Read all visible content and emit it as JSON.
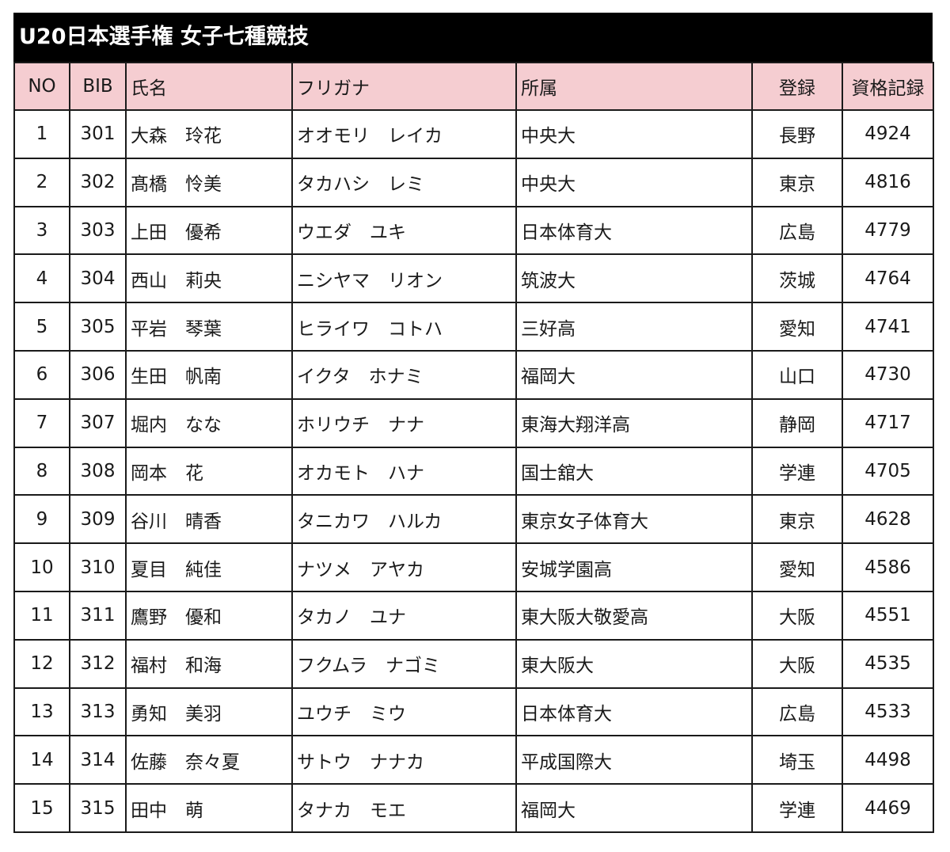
{
  "title": "U20日本選手権 女子七種競技",
  "columns": {
    "no": "NO",
    "bib": "BIB",
    "name": "氏名",
    "kana": "フリガナ",
    "affiliation": "所属",
    "registration": "登録",
    "record": "資格記録"
  },
  "rows": [
    {
      "no": "1",
      "bib": "301",
      "name": "大森　玲花",
      "kana": "オオモリ　レイカ",
      "affiliation": "中央大",
      "registration": "長野",
      "record": "4924"
    },
    {
      "no": "2",
      "bib": "302",
      "name": "髙橋　怜美",
      "kana": "タカハシ　レミ",
      "affiliation": "中央大",
      "registration": "東京",
      "record": "4816"
    },
    {
      "no": "3",
      "bib": "303",
      "name": "上田　優希",
      "kana": "ウエダ　ユキ",
      "affiliation": "日本体育大",
      "registration": "広島",
      "record": "4779"
    },
    {
      "no": "4",
      "bib": "304",
      "name": "西山　莉央",
      "kana": "ニシヤマ　リオン",
      "affiliation": "筑波大",
      "registration": "茨城",
      "record": "4764"
    },
    {
      "no": "5",
      "bib": "305",
      "name": "平岩　琴葉",
      "kana": "ヒライワ　コトハ",
      "affiliation": "三好高",
      "registration": "愛知",
      "record": "4741"
    },
    {
      "no": "6",
      "bib": "306",
      "name": "生田　帆南",
      "kana": "イクタ　ホナミ",
      "affiliation": "福岡大",
      "registration": "山口",
      "record": "4730"
    },
    {
      "no": "7",
      "bib": "307",
      "name": "堀内　なな",
      "kana": "ホリウチ　ナナ",
      "affiliation": "東海大翔洋高",
      "registration": "静岡",
      "record": "4717"
    },
    {
      "no": "8",
      "bib": "308",
      "name": "岡本　花",
      "kana": "オカモト　ハナ",
      "affiliation": "国士舘大",
      "registration": "学連",
      "record": "4705"
    },
    {
      "no": "9",
      "bib": "309",
      "name": "谷川　晴香",
      "kana": "タニカワ　ハルカ",
      "affiliation": "東京女子体育大",
      "registration": "東京",
      "record": "4628"
    },
    {
      "no": "10",
      "bib": "310",
      "name": "夏目　純佳",
      "kana": "ナツメ　アヤカ",
      "affiliation": "安城学園高",
      "registration": "愛知",
      "record": "4586"
    },
    {
      "no": "11",
      "bib": "311",
      "name": "鷹野　優和",
      "kana": "タカノ　ユナ",
      "affiliation": "東大阪大敬愛高",
      "registration": "大阪",
      "record": "4551"
    },
    {
      "no": "12",
      "bib": "312",
      "name": "福村　和海",
      "kana": "フクムラ　ナゴミ",
      "affiliation": "東大阪大",
      "registration": "大阪",
      "record": "4535"
    },
    {
      "no": "13",
      "bib": "313",
      "name": "勇知　美羽",
      "kana": "ユウチ　ミウ",
      "affiliation": "日本体育大",
      "registration": "広島",
      "record": "4533"
    },
    {
      "no": "14",
      "bib": "314",
      "name": "佐藤　奈々夏",
      "kana": "サトウ　ナナカ",
      "affiliation": "平成国際大",
      "registration": "埼玉",
      "record": "4498"
    },
    {
      "no": "15",
      "bib": "315",
      "name": "田中　萌",
      "kana": "タナカ　モエ",
      "affiliation": "福岡大",
      "registration": "学連",
      "record": "4469"
    }
  ],
  "colors": {
    "title_background": "#000000",
    "title_text": "#ffffff",
    "header_background": "#f5cdd1",
    "border": "#1a1a1a"
  }
}
